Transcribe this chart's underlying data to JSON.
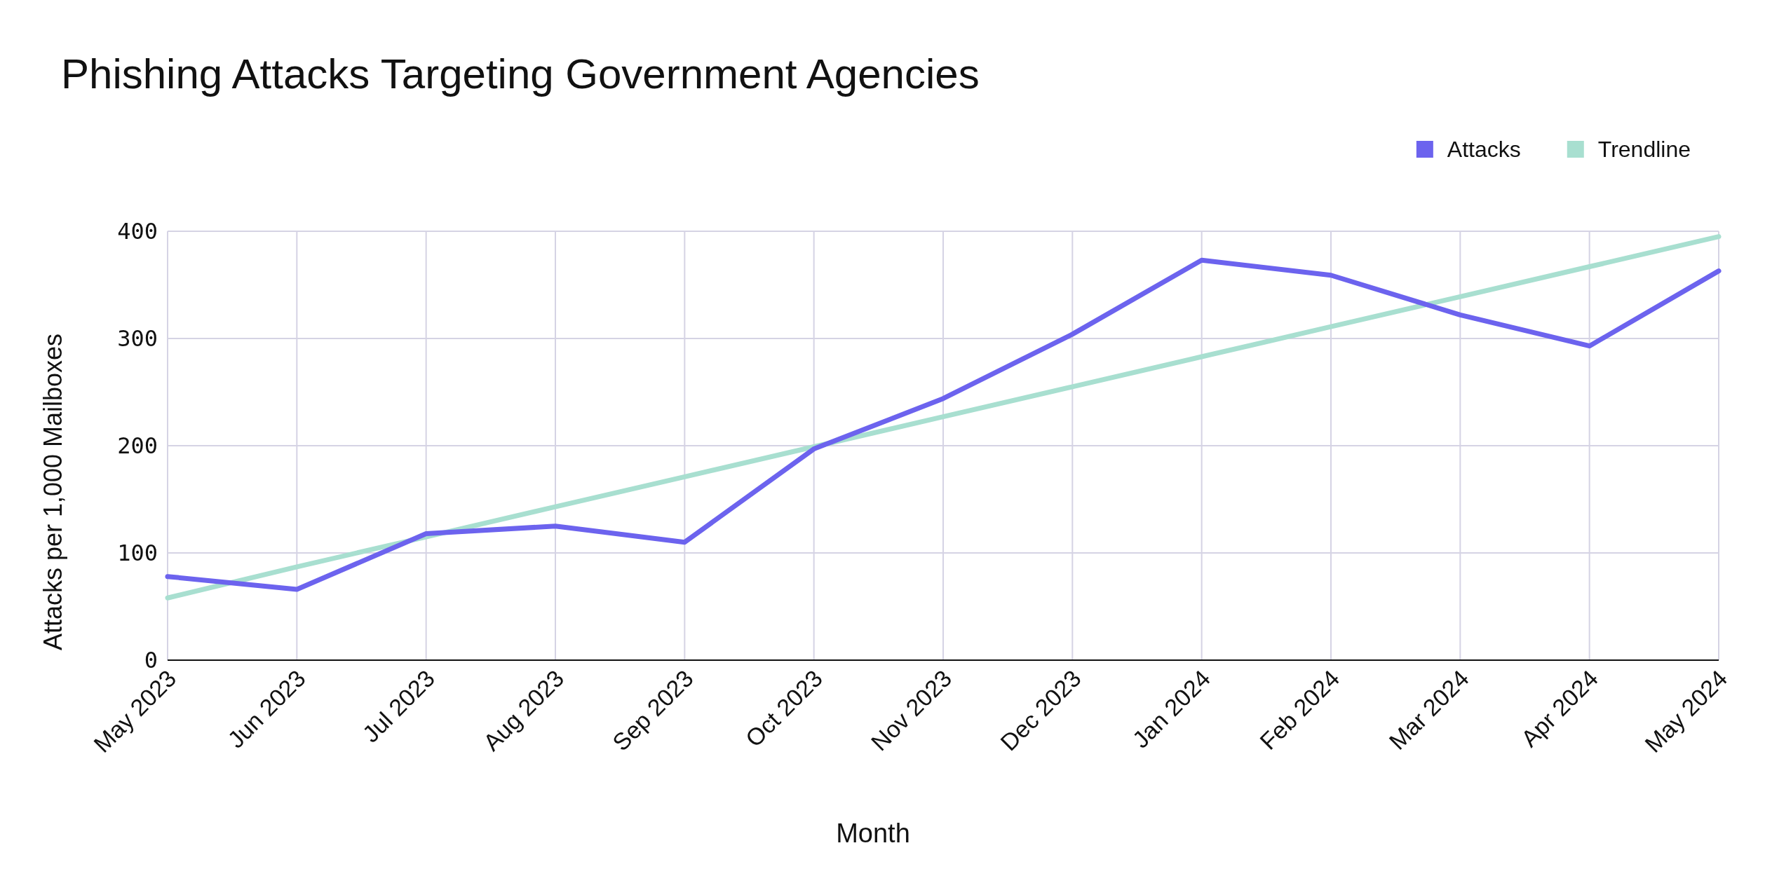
{
  "chart_data": {
    "type": "line",
    "title": "Phishing Attacks Targeting Government Agencies",
    "xlabel": "Month",
    "ylabel": "Attacks per 1,000 Mailboxes",
    "categories": [
      "May 2023",
      "Jun 2023",
      "Jul 2023",
      "Aug 2023",
      "Sep 2023",
      "Oct 2023",
      "Nov 2023",
      "Dec 2023",
      "Jan 2024",
      "Feb 2024",
      "Mar 2024",
      "Apr 2024",
      "May 2024"
    ],
    "series": [
      {
        "name": "Attacks",
        "color": "#6c63ee",
        "values": [
          78,
          66,
          118,
          125,
          110,
          197,
          244,
          304,
          373,
          359,
          322,
          293,
          363
        ]
      },
      {
        "name": "Trendline",
        "color": "#a8dfd0",
        "values": [
          58,
          87,
          115,
          143,
          171,
          199,
          227,
          255,
          283,
          311,
          339,
          367,
          395
        ]
      }
    ],
    "ylim": [
      0,
      400
    ],
    "yticks": [
      0,
      100,
      200,
      300,
      400
    ],
    "grid": true,
    "legend": "top right"
  }
}
